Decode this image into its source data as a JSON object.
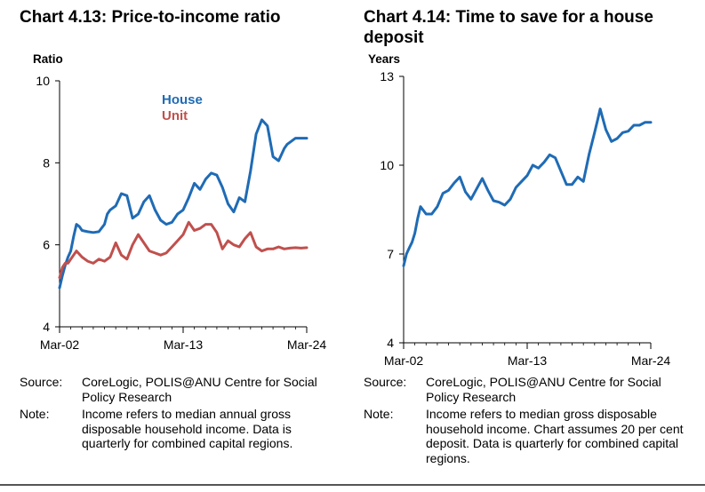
{
  "colors": {
    "house": "#1f6bb5",
    "unit": "#c0504d",
    "axis": "#000000"
  },
  "chart_data": [
    {
      "type": "line",
      "title": "Chart 4.13: Price-to-income ratio",
      "ylabel": "Ratio",
      "xlabel": "",
      "ylim": [
        4,
        10
      ],
      "yticks": [
        "4",
        "6",
        "8",
        "10"
      ],
      "xticks": [
        "Mar-02",
        "Mar-13",
        "Mar-24"
      ],
      "xlim": [
        2002,
        2024
      ],
      "grid": false,
      "legend": "top-left",
      "series": [
        {
          "name": "House",
          "color": "#1f6bb5",
          "x": [
            2002.0,
            2002.25,
            2002.5,
            2002.75,
            2003.0,
            2003.25,
            2003.5,
            2003.75,
            2004.0,
            2004.5,
            2005.0,
            2005.5,
            2006.0,
            2006.25,
            2006.5,
            2007.0,
            2007.5,
            2008.0,
            2008.5,
            2009.0,
            2009.5,
            2010.0,
            2010.5,
            2011.0,
            2011.5,
            2012.0,
            2012.5,
            2013.0,
            2013.5,
            2014.0,
            2014.5,
            2015.0,
            2015.5,
            2016.0,
            2016.5,
            2017.0,
            2017.5,
            2018.0,
            2018.5,
            2019.0,
            2019.5,
            2020.0,
            2020.5,
            2021.0,
            2021.5,
            2022.0,
            2022.25,
            2022.5,
            2023.0,
            2023.5,
            2024.0
          ],
          "values": [
            4.95,
            5.25,
            5.5,
            5.7,
            5.85,
            6.2,
            6.5,
            6.45,
            6.35,
            6.32,
            6.3,
            6.32,
            6.5,
            6.75,
            6.85,
            6.95,
            7.25,
            7.2,
            6.65,
            6.75,
            7.05,
            7.2,
            6.85,
            6.6,
            6.5,
            6.55,
            6.75,
            6.85,
            7.15,
            7.5,
            7.35,
            7.6,
            7.75,
            7.7,
            7.4,
            7.0,
            6.8,
            7.15,
            7.05,
            7.8,
            8.7,
            9.05,
            8.9,
            8.15,
            8.05,
            8.35,
            8.45,
            8.5,
            8.6,
            8.6,
            8.6
          ]
        },
        {
          "name": "Unit",
          "color": "#c0504d",
          "x": [
            2002.0,
            2002.25,
            2002.5,
            2002.75,
            2003.0,
            2003.5,
            2004.0,
            2004.5,
            2005.0,
            2005.5,
            2006.0,
            2006.5,
            2007.0,
            2007.5,
            2008.0,
            2008.5,
            2009.0,
            2009.5,
            2010.0,
            2010.5,
            2011.0,
            2011.5,
            2012.0,
            2012.5,
            2013.0,
            2013.5,
            2014.0,
            2014.5,
            2015.0,
            2015.5,
            2016.0,
            2016.5,
            2017.0,
            2017.5,
            2018.0,
            2018.5,
            2019.0,
            2019.5,
            2020.0,
            2020.5,
            2021.0,
            2021.5,
            2022.0,
            2022.5,
            2023.0,
            2023.5,
            2024.0
          ],
          "values": [
            5.2,
            5.45,
            5.55,
            5.55,
            5.65,
            5.85,
            5.7,
            5.6,
            5.55,
            5.65,
            5.6,
            5.7,
            6.05,
            5.75,
            5.65,
            6.0,
            6.25,
            6.05,
            5.85,
            5.8,
            5.75,
            5.8,
            5.95,
            6.1,
            6.25,
            6.55,
            6.35,
            6.4,
            6.5,
            6.5,
            6.3,
            5.9,
            6.1,
            6.0,
            5.95,
            6.15,
            6.3,
            5.95,
            5.85,
            5.9,
            5.9,
            5.95,
            5.9,
            5.92,
            5.93,
            5.92,
            5.93
          ]
        }
      ]
    },
    {
      "type": "line",
      "title": "Chart 4.14: Time to save for a house deposit",
      "ylabel": "Years",
      "xlabel": "",
      "ylim": [
        4,
        13
      ],
      "yticks": [
        "4",
        "7",
        "10",
        "13"
      ],
      "xticks": [
        "Mar-02",
        "Mar-13",
        "Mar-24"
      ],
      "xlim": [
        2002,
        2024
      ],
      "grid": false,
      "series": [
        {
          "name": "",
          "color": "#1f6bb5",
          "x": [
            2002.0,
            2002.25,
            2002.5,
            2002.75,
            2003.0,
            2003.25,
            2003.5,
            2004.0,
            2004.5,
            2005.0,
            2005.5,
            2006.0,
            2006.5,
            2007.0,
            2007.5,
            2008.0,
            2008.5,
            2009.0,
            2009.5,
            2010.0,
            2010.5,
            2011.0,
            2011.5,
            2012.0,
            2012.5,
            2013.0,
            2013.5,
            2014.0,
            2014.5,
            2015.0,
            2015.5,
            2016.0,
            2016.5,
            2017.0,
            2017.5,
            2018.0,
            2018.5,
            2019.0,
            2019.25,
            2019.5,
            2020.0,
            2020.5,
            2021.0,
            2021.5,
            2022.0,
            2022.5,
            2023.0,
            2023.5,
            2024.0
          ],
          "values": [
            6.6,
            7.0,
            7.2,
            7.4,
            7.7,
            8.2,
            8.6,
            8.35,
            8.35,
            8.6,
            9.05,
            9.15,
            9.4,
            9.6,
            9.1,
            8.85,
            9.2,
            9.55,
            9.15,
            8.8,
            8.75,
            8.65,
            8.85,
            9.25,
            9.45,
            9.65,
            10.0,
            9.9,
            10.1,
            10.35,
            10.25,
            9.8,
            9.35,
            9.35,
            9.6,
            9.45,
            10.35,
            11.1,
            11.5,
            11.9,
            11.2,
            10.8,
            10.9,
            11.1,
            11.15,
            11.35,
            11.35,
            11.45,
            11.45
          ]
        }
      ]
    }
  ],
  "left": {
    "source_label": "Source:",
    "source_text": "CoreLogic, POLIS@ANU Centre for Social Policy Research",
    "note_label": "Note:",
    "note_text": "Income refers to median annual gross disposable household income. Data is quarterly for combined capital regions."
  },
  "right": {
    "source_label": "Source:",
    "source_text": "CoreLogic, POLIS@ANU Centre for Social Policy Research",
    "note_label": "Note:",
    "note_text": "Income refers to median gross disposable household income. Chart assumes 20 per cent deposit. Data is quarterly for combined capital regions."
  }
}
